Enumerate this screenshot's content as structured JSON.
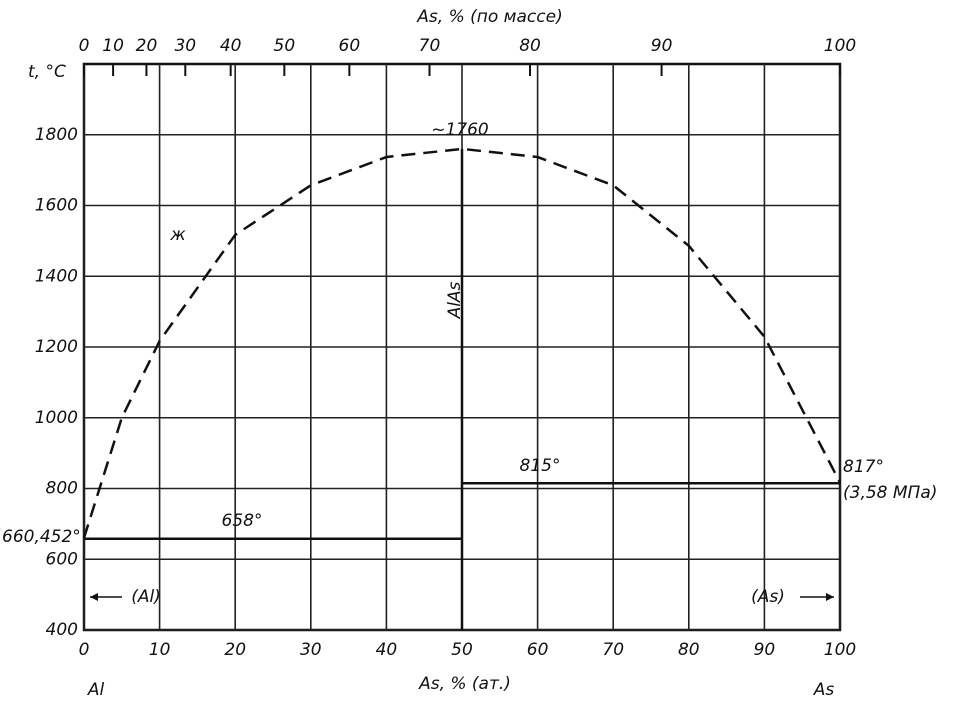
{
  "chart_data": {
    "type": "line",
    "title": "As, % (по массе)",
    "xlabel": "As, % (ат.)",
    "ylabel": "t, °C",
    "xlim": [
      0,
      100
    ],
    "xticks": [
      0,
      10,
      20,
      30,
      40,
      50,
      60,
      70,
      80,
      90,
      100
    ],
    "x2ticks": [
      {
        "value": 0,
        "label": "0"
      },
      {
        "value": 3.85,
        "label": "10"
      },
      {
        "value": 8.26,
        "label": "20"
      },
      {
        "value": 13.4,
        "label": "30"
      },
      {
        "value": 19.4,
        "label": "40"
      },
      {
        "value": 26.5,
        "label": "50"
      },
      {
        "value": 35.1,
        "label": "60"
      },
      {
        "value": 45.7,
        "label": "70"
      },
      {
        "value": 59.0,
        "label": "80"
      },
      {
        "value": 76.4,
        "label": "90"
      },
      {
        "value": 100,
        "label": "100"
      }
    ],
    "ylim": [
      400,
      2000
    ],
    "yticks": [
      400,
      600,
      800,
      1000,
      1200,
      1400,
      1600,
      1800
    ],
    "grid": true,
    "series": [
      {
        "color": "#111111",
        "dashed": true,
        "x": [
          0,
          5,
          10,
          20,
          30,
          40,
          50,
          60,
          70,
          80,
          90,
          100
        ],
        "values": [
          660.452,
          1000,
          1217,
          1517,
          1657,
          1737,
          1760,
          1737,
          1657,
          1486,
          1229,
          817
        ]
      },
      {
        "color": "#111111",
        "dashed": false,
        "x": [
          0,
          50
        ],
        "values": [
          658,
          658
        ]
      },
      {
        "color": "#111111",
        "dashed": false,
        "x": [
          50,
          100
        ],
        "values": [
          815,
          815
        ]
      },
      {
        "color": "#111111",
        "dashed": false,
        "x": [
          50,
          50
        ],
        "values": [
          400,
          1760
        ]
      }
    ],
    "annotations": [
      "~1760",
      "ж",
      "AlAs",
      "815°",
      "658°",
      "660,452°",
      "817°",
      "(3,58 МПа)",
      "(Al)",
      "(As)",
      "Al",
      "As"
    ]
  }
}
